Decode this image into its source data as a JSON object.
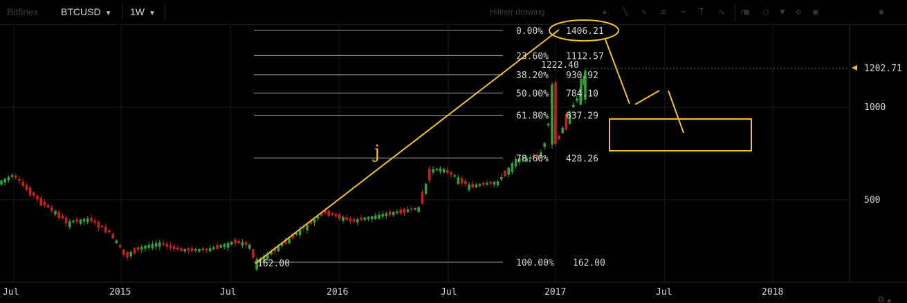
{
  "toolbar": {
    "logo_text": "Bitfinex",
    "symbol": "BTCUSD",
    "interval": "1W",
    "drawing_hint": "Hillner drawing"
  },
  "price_axis": {
    "current_price": "1202.71",
    "ticks": [
      "1000",
      "500"
    ]
  },
  "time_axis": {
    "ticks": [
      "Jul",
      "2015",
      "Jul",
      "2016",
      "Jul",
      "2017",
      "Jul",
      "2018"
    ]
  },
  "fib": {
    "levels": [
      {
        "pct": "0.00%",
        "price": "1406.21"
      },
      {
        "pct": "23.60%",
        "price": "1112.57"
      },
      {
        "pct": "38.20%",
        "price": "930.92"
      },
      {
        "pct": "50.00%",
        "price": "784.10"
      },
      {
        "pct": "61.80%",
        "price": "637.29"
      },
      {
        "pct": "78.60%",
        "price": "428.26"
      },
      {
        "pct": "100.00%",
        "price": "162.00"
      }
    ],
    "anchor_low_label": "162.00",
    "peak_label": "1222.40"
  },
  "annotations": {
    "handwritten_letter": "j"
  },
  "colors": {
    "up": "#35a035",
    "down": "#c42020",
    "drawing": "#f0c030",
    "grid": "#1b1b1b",
    "fib_line": "#cfcfcf"
  }
}
